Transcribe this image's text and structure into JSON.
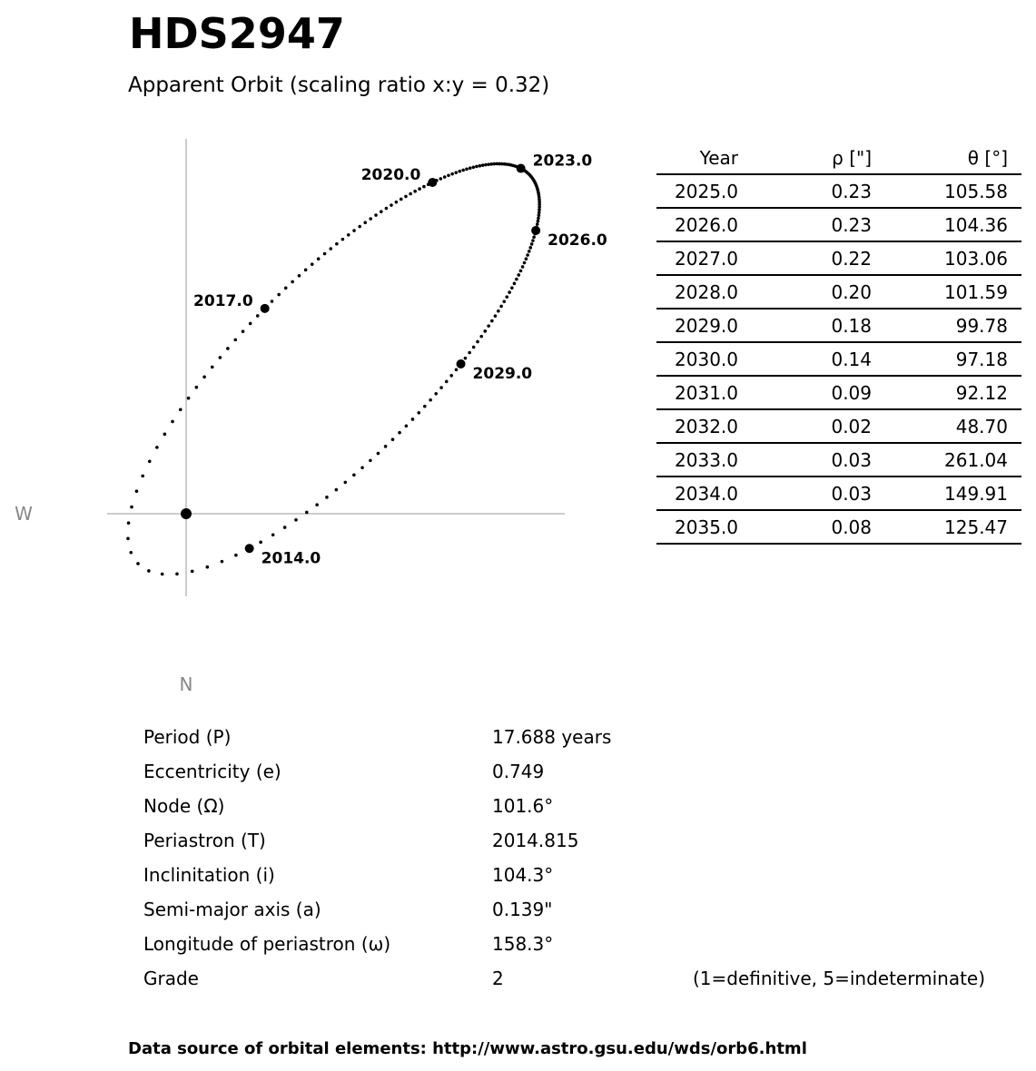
{
  "title": "HDS2947",
  "subtitle": "Apparent Orbit (scaling ratio x:y = 0.32)",
  "footer": "Data source of orbital elements: http://www.astro.gsu.edu/wds/orb6.html",
  "chart_data": {
    "type": "scatter",
    "description_axes": {
      "left_label": "W",
      "bottom_label": "N"
    },
    "scaling_ratio_xy": 0.32,
    "orbit_step_years": 0.1,
    "labeled_epochs": [
      2014.0,
      2017.0,
      2020.0,
      2023.0,
      2026.0,
      2029.0
    ],
    "labeled_epoch_texts": [
      "2014.0",
      "2017.0",
      "2020.0",
      "2023.0",
      "2026.0",
      "2029.0"
    ],
    "elements": {
      "P": 17.688,
      "e": 0.749,
      "Omega": 101.6,
      "T": 2014.815,
      "i": 104.3,
      "a": 0.139,
      "omega": 158.3
    },
    "point_color": "#000000",
    "axis_color": "#999999"
  },
  "table": {
    "headers": [
      "Year",
      "ρ [\"]",
      "θ [°]"
    ],
    "rows": [
      [
        "2025.0",
        "0.23",
        "105.58"
      ],
      [
        "2026.0",
        "0.23",
        "104.36"
      ],
      [
        "2027.0",
        "0.22",
        "103.06"
      ],
      [
        "2028.0",
        "0.20",
        "101.59"
      ],
      [
        "2029.0",
        "0.18",
        "99.78"
      ],
      [
        "2030.0",
        "0.14",
        "97.18"
      ],
      [
        "2031.0",
        "0.09",
        "92.12"
      ],
      [
        "2032.0",
        "0.02",
        "48.70"
      ],
      [
        "2033.0",
        "0.03",
        "261.04"
      ],
      [
        "2034.0",
        "0.03",
        "149.91"
      ],
      [
        "2035.0",
        "0.08",
        "125.47"
      ]
    ]
  },
  "elements_list": [
    {
      "label": "Period (P)",
      "value": "17.688 years"
    },
    {
      "label": "Eccentricity (e)",
      "value": "0.749"
    },
    {
      "label": "Node (Ω)",
      "value": "101.6°"
    },
    {
      "label": "Periastron (T)",
      "value": "2014.815"
    },
    {
      "label": "Inclinitation (i)",
      "value": "104.3°"
    },
    {
      "label": "Semi-major axis (a)",
      "value": "0.139\""
    },
    {
      "label": "Longitude of periastron (ω)",
      "value": "158.3°"
    },
    {
      "label": "Grade",
      "value": "2"
    }
  ],
  "grade_note": "(1=definitive, 5=indeterminate)"
}
